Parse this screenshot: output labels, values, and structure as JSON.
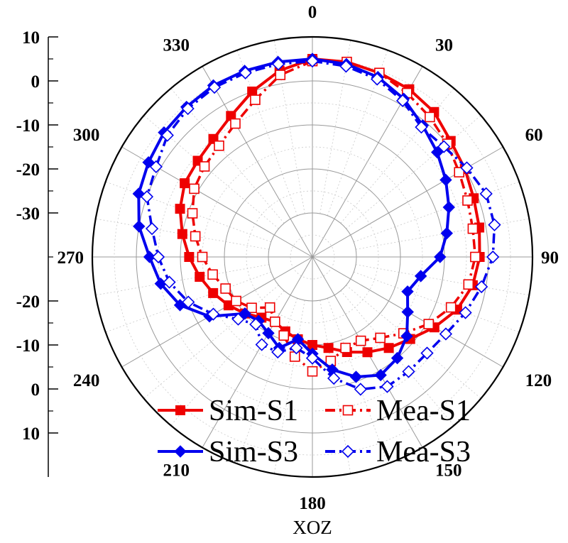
{
  "chart_data": {
    "type": "polar-line",
    "plane_label": "XOZ",
    "radial_axis": {
      "min": -40,
      "max": 10,
      "tick_step": 10,
      "tick_labels": [
        "10",
        "0",
        "-10",
        "-20",
        "-30",
        "-20",
        "-10",
        "0",
        "10"
      ]
    },
    "angle_labels": [
      "0",
      "30",
      "60",
      "90",
      "120",
      "150",
      "180",
      "210",
      "240",
      "270",
      "300",
      "330"
    ],
    "grid": true,
    "legend_position": "bottom-center",
    "series": [
      {
        "name": "Sim-S1",
        "color": "#ee0000",
        "line": "solid",
        "marker": "filled-square",
        "theta": [
          0,
          10,
          20,
          30,
          40,
          50,
          60,
          70,
          80,
          90,
          100,
          110,
          120,
          130,
          140,
          150,
          160,
          170,
          180,
          190,
          200,
          210,
          220,
          230,
          240,
          250,
          260,
          270,
          280,
          290,
          300,
          310,
          320,
          330,
          340,
          350
        ],
        "r": [
          5,
          5,
          4.5,
          4,
          3,
          1,
          0,
          -1,
          -1.5,
          -2,
          -3,
          -5,
          -8,
          -11,
          -13,
          -15,
          -17,
          -19,
          -20,
          -21,
          -22,
          -23,
          -22,
          -20,
          -18,
          -16,
          -14,
          -12,
          -10,
          -8,
          -6.5,
          -6,
          -5,
          -3,
          0,
          3
        ]
      },
      {
        "name": "Mea-S1",
        "color": "#ee0000",
        "line": "dash-dot",
        "marker": "open-square",
        "theta": [
          0,
          10,
          20,
          30,
          40,
          50,
          60,
          70,
          80,
          90,
          100,
          110,
          120,
          130,
          140,
          150,
          160,
          170,
          180,
          190,
          200,
          210,
          220,
          230,
          240,
          250,
          260,
          270,
          280,
          290,
          300,
          310,
          320,
          330,
          340,
          350
        ],
        "r": [
          4.5,
          5,
          4.5,
          3,
          1.5,
          0,
          -1.5,
          -2.5,
          -3,
          -3,
          -4,
          -6.5,
          -9.5,
          -13,
          -16,
          -18,
          -18,
          -16,
          -14,
          -17,
          -21,
          -23,
          -25,
          -22,
          -20,
          -19,
          -17,
          -15,
          -13,
          -11,
          -9,
          -8,
          -7,
          -5,
          -2,
          2
        ]
      },
      {
        "name": "Sim-S3",
        "color": "#0000ee",
        "line": "solid",
        "marker": "filled-diamond",
        "theta": [
          0,
          10,
          20,
          30,
          40,
          50,
          60,
          70,
          80,
          90,
          100,
          110,
          120,
          130,
          140,
          150,
          160,
          170,
          180,
          190,
          200,
          210,
          220,
          230,
          240,
          250,
          260,
          270,
          280,
          290,
          300,
          310,
          320,
          330,
          340,
          350
        ],
        "r": [
          5,
          4.5,
          3.5,
          1.5,
          -1,
          -3,
          -5,
          -7,
          -9,
          -11,
          -15,
          -17,
          -15,
          -12,
          -10,
          -9,
          -11,
          -14,
          -18,
          -21,
          -18,
          -20,
          -21,
          -20,
          -13,
          -8,
          -5,
          -3,
          0,
          2,
          3,
          4,
          4.5,
          5,
          5,
          5
        ]
      },
      {
        "name": "Mea-S3",
        "color": "#0000ee",
        "line": "dash-dot",
        "marker": "open-diamond",
        "theta": [
          0,
          10,
          20,
          30,
          40,
          50,
          60,
          70,
          80,
          90,
          100,
          110,
          120,
          130,
          140,
          150,
          160,
          170,
          180,
          190,
          200,
          210,
          220,
          230,
          240,
          250,
          260,
          270,
          280,
          290,
          300,
          310,
          320,
          330,
          340,
          350
        ],
        "r": [
          4.5,
          4,
          3,
          1,
          -1.5,
          -1,
          0.5,
          2,
          2,
          1,
          -1,
          -3,
          -5,
          -6,
          -6,
          -6,
          -8,
          -12,
          -17,
          -19,
          -17,
          -17,
          -20,
          -18,
          -14,
          -10,
          -7,
          -5,
          -3,
          0,
          1,
          3,
          4,
          4.5,
          4.5,
          4.5
        ]
      }
    ]
  }
}
